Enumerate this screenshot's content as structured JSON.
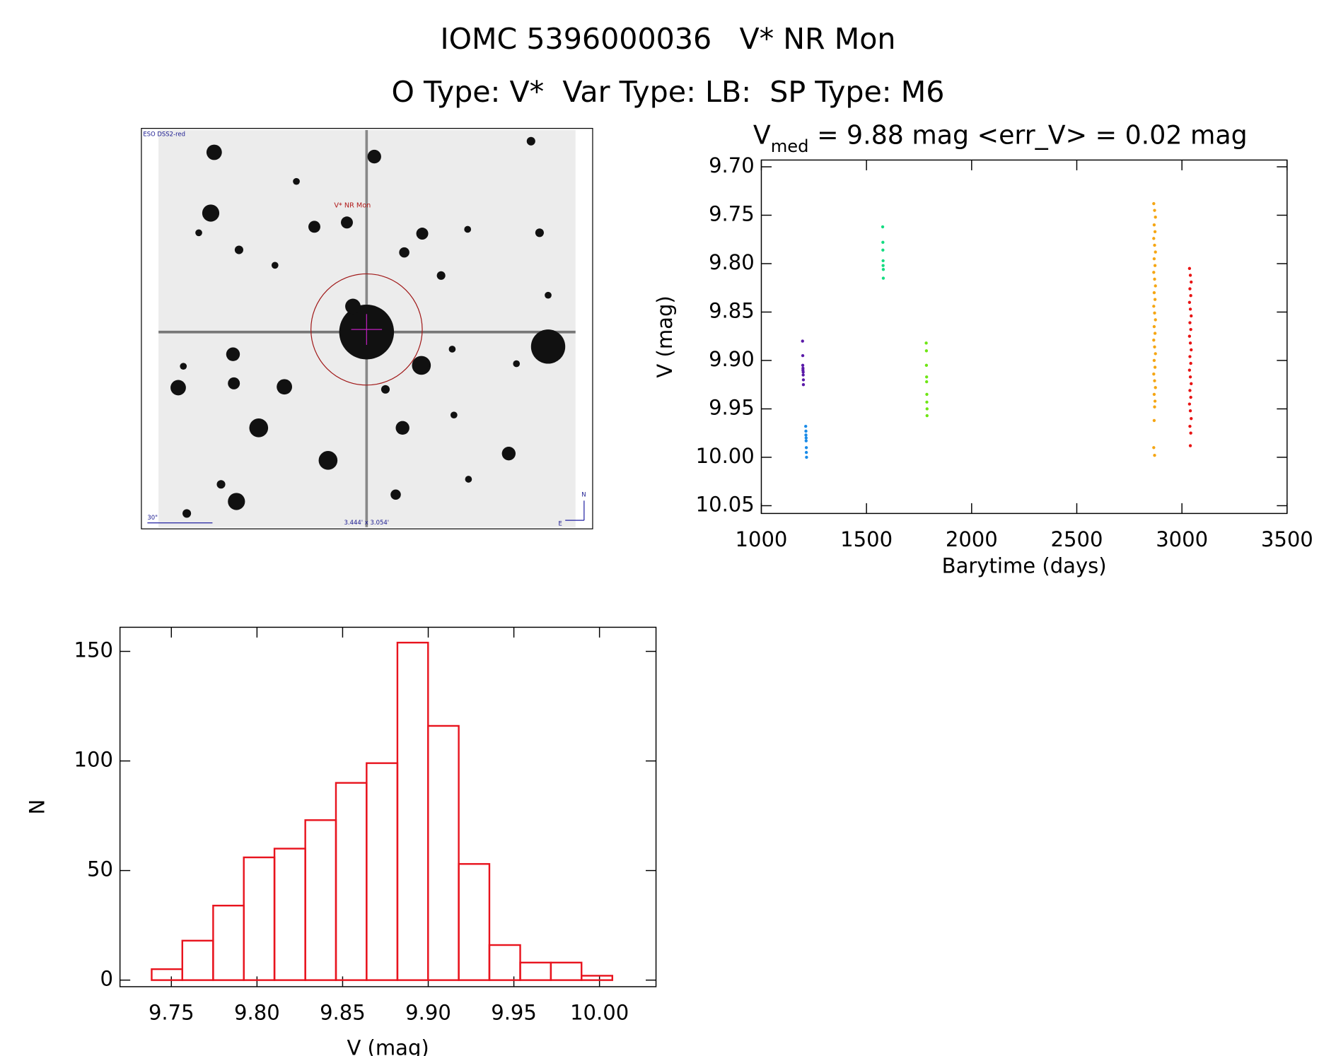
{
  "header": {
    "title": "IOMC 5396000036   V* NR Mon",
    "subtitle": "O Type: V*  Var Type: LB:  SP Type: M6"
  },
  "image": {
    "survey": "ESO DSS2-red",
    "target": "V* NR Mon",
    "scale": "30\"",
    "size": "3.444' x 3.054'",
    "north": "N",
    "east": "E"
  },
  "chart_data": [
    {
      "type": "scatter",
      "title": {
        "symbol": "V",
        "subscript": "med",
        "text": " = 9.88 mag <err_V> = 0.02 mag"
      },
      "xlabel": "Barytime (days)",
      "ylabel": "V (mag)",
      "xlim": [
        1000,
        3500
      ],
      "xticks": [
        1000,
        1500,
        2000,
        2500,
        3000,
        3500
      ],
      "ylim": [
        10.058,
        9.693
      ],
      "yticks": [
        {
          "value": 9.7,
          "label": "9.70"
        },
        9.75,
        {
          "value": 9.8,
          "label": "9.80"
        },
        9.85,
        {
          "value": 9.9,
          "label": "9.90"
        },
        9.95,
        {
          "value": 10.0,
          "label": "10.00"
        },
        10.05
      ],
      "series": [
        {
          "color": "#5a1aa8",
          "x": [
            1196,
            1197,
            1197,
            1198,
            1198,
            1199,
            1199,
            1200,
            1200
          ],
          "values": [
            9.88,
            9.895,
            9.905,
            9.908,
            9.91,
            9.912,
            9.915,
            9.92,
            9.925
          ]
        },
        {
          "color": "#1a8be8",
          "x": [
            1211,
            1212,
            1212,
            1213,
            1213,
            1214,
            1214,
            1215
          ],
          "values": [
            9.968,
            9.973,
            9.977,
            9.98,
            9.983,
            9.99,
            9.995,
            10.0
          ]
        },
        {
          "color": "#14dc82",
          "x": [
            1577,
            1578,
            1578,
            1579,
            1579,
            1580,
            1580
          ],
          "values": [
            9.762,
            9.778,
            9.786,
            9.797,
            9.802,
            9.806,
            9.815
          ]
        },
        {
          "color": "#6ee614",
          "x": [
            1784,
            1785,
            1785,
            1786,
            1786,
            1787,
            1787,
            1788,
            1788
          ],
          "values": [
            9.882,
            9.89,
            9.905,
            9.917,
            9.922,
            9.935,
            9.943,
            9.95,
            9.957
          ]
        },
        {
          "color": "#f5a614",
          "x": [
            2866,
            2870,
            2874,
            2868,
            2872,
            2866,
            2870,
            2874,
            2868,
            2872,
            2866,
            2870,
            2874,
            2868,
            2872,
            2866,
            2870,
            2874,
            2868,
            2872,
            2866,
            2870,
            2874,
            2868,
            2872,
            2866,
            2870,
            2874,
            2868,
            2872,
            2870,
            2868,
            2866,
            2870
          ],
          "values": [
            9.738,
            9.745,
            9.752,
            9.76,
            9.767,
            9.774,
            9.781,
            9.788,
            9.795,
            9.802,
            9.809,
            9.816,
            9.823,
            9.83,
            9.837,
            9.844,
            9.851,
            9.858,
            9.865,
            9.872,
            9.879,
            9.886,
            9.893,
            9.9,
            9.907,
            9.914,
            9.921,
            9.928,
            9.935,
            9.942,
            9.948,
            9.962,
            9.99,
            9.998
          ]
        },
        {
          "color": "#e81414",
          "x": [
            3036,
            3040,
            3044,
            3038,
            3042,
            3036,
            3040,
            3044,
            3038,
            3042,
            3036,
            3040,
            3044,
            3038,
            3042,
            3036,
            3040,
            3044,
            3038,
            3042,
            3036,
            3040,
            3044,
            3038,
            3042,
            3040
          ],
          "values": [
            9.805,
            9.812,
            9.819,
            9.826,
            9.833,
            9.84,
            9.847,
            9.854,
            9.861,
            9.868,
            9.875,
            9.882,
            9.889,
            9.896,
            9.903,
            9.91,
            9.917,
            9.924,
            9.931,
            9.938,
            9.945,
            9.952,
            9.96,
            9.968,
            9.975,
            9.988
          ]
        }
      ]
    },
    {
      "type": "histogram",
      "xlabel": "V (mag)",
      "ylabel": "N",
      "color": "#e8141e",
      "xlim": [
        9.72,
        10.033
      ],
      "xticks": [
        9.75,
        {
          "value": 9.8,
          "label": "9.80"
        },
        9.85,
        {
          "value": 9.9,
          "label": "9.90"
        },
        9.95,
        {
          "value": 10.0,
          "label": "10.00"
        }
      ],
      "ylim": [
        -3,
        161
      ],
      "yticks": [
        0,
        50,
        100,
        150
      ],
      "bins": [
        9.7385,
        9.7564,
        9.7744,
        9.7923,
        9.8102,
        9.8282,
        9.8461,
        9.864,
        9.882,
        9.8999,
        9.9178,
        9.9357,
        9.9537,
        9.9716,
        9.9895,
        10.0075
      ],
      "values": [
        5,
        18,
        34,
        56,
        60,
        73,
        90,
        99,
        154,
        116,
        53,
        16,
        8,
        8,
        2
      ]
    }
  ]
}
